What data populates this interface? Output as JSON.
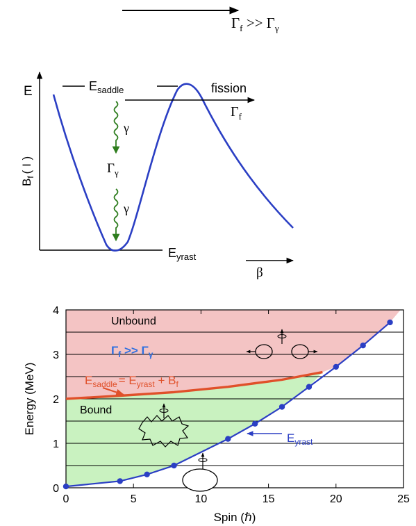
{
  "top": {
    "condition_main": "Γ",
    "condition_sub1": "f",
    "condition_op": " >> Γ",
    "condition_sub2": "γ"
  },
  "potential": {
    "e_axis": "E",
    "y_axis_main": "B",
    "y_axis_sub": "f",
    "y_axis_arg": "( I )",
    "saddle_main": "E",
    "saddle_sub": "saddle",
    "fission": "fission",
    "gamma_f_main": "Γ",
    "gamma_f_sub": "f",
    "gamma_1": "γ",
    "gamma_gamma_main": "Γ",
    "gamma_gamma_sub": "γ",
    "gamma_2": "γ",
    "yrast_main": "E",
    "yrast_sub": "yrast",
    "beta": "β"
  },
  "colors": {
    "curve": "#2b3fc4",
    "gamma_arrow": "#2e7d1e",
    "unbound_fill": "#f4c4c4",
    "bound_fill": "#c9f2c0",
    "saddle_line": "#e0502a",
    "condition_text": "#2f6fe0",
    "yrast_label": "#2b3fc4"
  },
  "chart_data": {
    "type": "area",
    "xlabel": "Spin  (ℏ)",
    "ylabel": "Energy (MeV)",
    "xlim": [
      0,
      25
    ],
    "ylim": [
      0,
      4
    ],
    "x_ticks": [
      "0",
      "5",
      "10",
      "15",
      "20",
      "25"
    ],
    "y_ticks": [
      "0",
      "1",
      "2",
      "3",
      "4"
    ],
    "regions": {
      "unbound": "Unbound",
      "bound": "Bound"
    },
    "condition": {
      "main": "Γ",
      "sub1": "f",
      "op": " >> Γ",
      "sub2": "γ"
    },
    "saddle_eq": {
      "lhs_main": "E",
      "lhs_sub": "saddle",
      "mid_main": "= E",
      "mid_sub": "yrast",
      "rhs_main": " + B",
      "rhs_sub": "f"
    },
    "yrast_label": {
      "main": "E",
      "sub": "yrast"
    },
    "yrast_points": {
      "x": [
        0,
        4,
        6,
        8,
        12,
        14,
        16,
        18,
        20,
        22,
        24
      ],
      "y": [
        0.03,
        0.15,
        0.3,
        0.5,
        1.1,
        1.44,
        1.82,
        2.27,
        2.72,
        3.2,
        3.72
      ]
    },
    "saddle_curve": {
      "x": [
        0,
        4,
        8,
        12,
        16,
        19
      ],
      "y": [
        2.0,
        2.07,
        2.15,
        2.27,
        2.43,
        2.6
      ]
    },
    "level_lines_y": [
      0.5,
      1.0,
      1.5,
      2.0,
      2.5,
      3.0,
      3.5
    ]
  }
}
